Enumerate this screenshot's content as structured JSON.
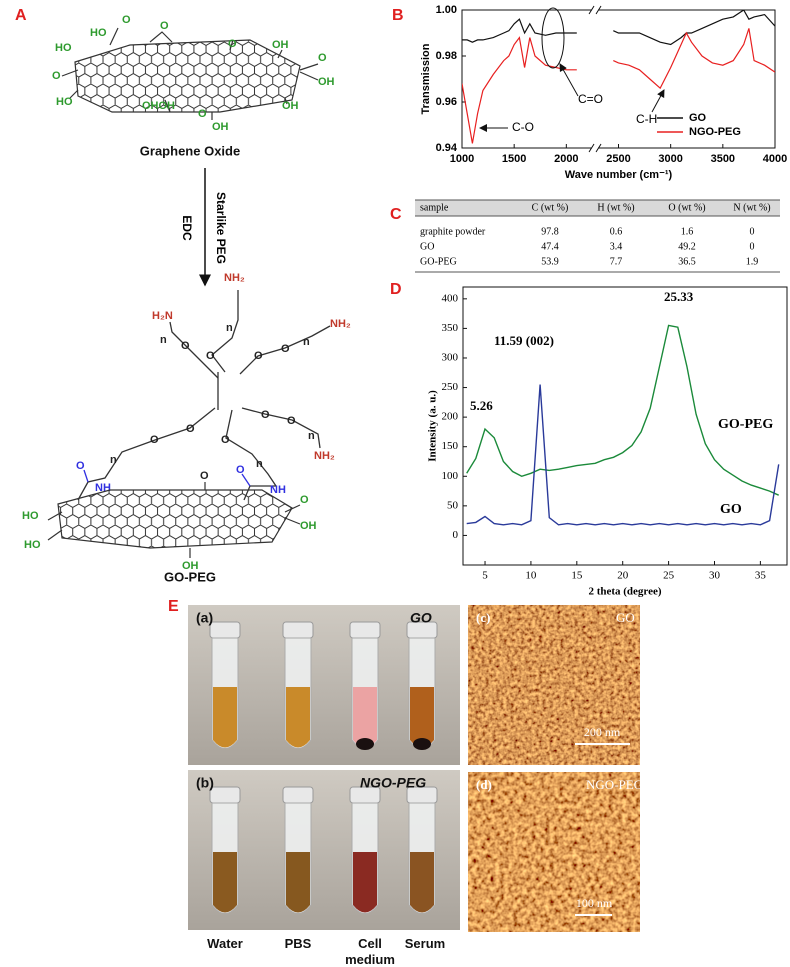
{
  "panel_labels": [
    "A",
    "B",
    "C",
    "D",
    "E"
  ],
  "panel_a": {
    "top_groups": [
      "HO",
      "O",
      "O",
      "O",
      "OH",
      "HO",
      "O",
      "OH",
      "O",
      "HO",
      "OHOH",
      "OH",
      "O",
      "OH"
    ],
    "top_caption": "Graphene Oxide",
    "reagents": [
      "Starlike PEG",
      "EDC"
    ],
    "bottom_groups": [
      "NH₂",
      "H₂N",
      "NH₂",
      "NH₂",
      "n",
      "n",
      "n",
      "n",
      "n",
      "n",
      "O",
      "O",
      "O",
      "O",
      "O",
      "O",
      "O",
      "O",
      "O",
      "NH",
      "NH",
      "O",
      "O",
      "O",
      "HO",
      "HO",
      "O",
      "OH",
      "OH"
    ],
    "bottom_caption": "GO-PEG"
  },
  "chart_data": [
    {
      "type": "line",
      "x_label": "Wave number (cm⁻¹)",
      "y_label": "Transmission",
      "x": [
        1000,
        1050,
        1100,
        1150,
        1200,
        1300,
        1400,
        1450,
        1500,
        1550,
        1600,
        1650,
        1700,
        1800,
        1900,
        2000,
        2100,
        2300,
        2450,
        2500,
        2600,
        2700,
        2800,
        2900,
        3000,
        3100,
        3150,
        3200,
        3300,
        3400,
        3500,
        3600,
        3700,
        3750,
        3800,
        3900,
        4000
      ],
      "series": [
        {
          "name": "GO",
          "color": "#111111",
          "values": [
            0.987,
            0.987,
            0.986,
            0.987,
            0.987,
            0.988,
            0.99,
            0.991,
            0.994,
            0.996,
            0.99,
            0.994,
            0.99,
            0.989,
            0.99,
            0.99,
            0.99,
            null,
            0.991,
            0.99,
            0.99,
            0.99,
            0.988,
            0.986,
            0.985,
            0.988,
            0.99,
            0.99,
            0.992,
            0.994,
            0.996,
            0.997,
            1.0,
            0.996,
            0.997,
            0.998,
            0.993
          ]
        },
        {
          "name": "NGO-PEG",
          "color": "#e82020",
          "values": [
            0.968,
            0.955,
            0.942,
            0.955,
            0.965,
            0.972,
            0.978,
            0.98,
            0.985,
            0.988,
            0.975,
            0.988,
            0.98,
            0.976,
            0.975,
            0.974,
            0.974,
            null,
            0.978,
            0.977,
            0.976,
            0.974,
            0.97,
            0.966,
            0.975,
            0.985,
            0.99,
            0.986,
            0.98,
            0.977,
            0.976,
            0.978,
            0.985,
            0.992,
            0.978,
            0.976,
            0.973
          ]
        }
      ],
      "xlim": [
        1000,
        4000
      ],
      "xticks": [
        1000,
        1500,
        2000,
        2500,
        3000,
        3500,
        4000
      ],
      "ylim": [
        0.94,
        1.0
      ],
      "yticks": [
        0.94,
        0.96,
        0.98,
        {
          "value": 1.0,
          "label": "1.00"
        }
      ],
      "annotations": [
        "C-O",
        "C=O",
        "C-H"
      ],
      "legend": "lower right"
    },
    {
      "type": "line",
      "x_label": "2 theta (degree)",
      "y_label": "Intensity (a. u.)",
      "x": [
        3,
        4,
        5,
        6,
        7,
        8,
        9,
        10,
        11,
        12,
        13,
        14,
        15,
        16,
        17,
        18,
        19,
        20,
        21,
        22,
        23,
        24,
        25,
        26,
        27,
        28,
        29,
        30,
        31,
        32,
        33,
        34,
        35,
        36,
        37
      ],
      "series": [
        {
          "name": "GO-PEG",
          "color": "#1b8a3a",
          "values": [
            105,
            130,
            180,
            165,
            125,
            108,
            100,
            105,
            112,
            110,
            112,
            115,
            118,
            120,
            122,
            128,
            132,
            140,
            152,
            175,
            215,
            285,
            355,
            352,
            285,
            205,
            155,
            128,
            112,
            102,
            92,
            85,
            80,
            75,
            68
          ]
        },
        {
          "name": "GO",
          "color": "#2a3a9a",
          "values": [
            20,
            22,
            32,
            20,
            18,
            20,
            18,
            25,
            255,
            30,
            18,
            20,
            18,
            20,
            18,
            20,
            18,
            20,
            18,
            20,
            18,
            20,
            18,
            20,
            18,
            20,
            18,
            20,
            18,
            20,
            18,
            20,
            18,
            25,
            120
          ]
        }
      ],
      "xlim": [
        2.6,
        37.9
      ],
      "xticks": [
        5,
        10,
        15,
        20,
        25,
        30,
        35
      ],
      "ylim": [
        -50,
        420
      ],
      "yticks": [
        0,
        50,
        100,
        150,
        200,
        250,
        300,
        350,
        400
      ],
      "annotations": [
        "5.26",
        "11.59 (002)",
        "25.33"
      ]
    }
  ],
  "table": {
    "header": [
      "sample",
      "C (wt %)",
      "H (wt %)",
      "O (wt %)",
      "N (wt %)"
    ],
    "rows": [
      [
        "graphite powder",
        97.8,
        0.6,
        1.6,
        0
      ],
      [
        "GO",
        47.4,
        3.4,
        49.2,
        0
      ],
      [
        "GO-PEG",
        53.9,
        7.7,
        36.5,
        1.9
      ]
    ]
  },
  "panel_e": {
    "photo_a_label": "(a)",
    "photo_a_title": "GO",
    "photo_b_label": "(b)",
    "photo_b_title": "NGO-PEG",
    "media": [
      "Water",
      "PBS",
      "Cell medium",
      "Serum"
    ],
    "afm_c_label": "(c)",
    "afm_c_title": "GO",
    "afm_c_scale": "200 nm",
    "afm_d_label": "(d)",
    "afm_d_title": "NGO-PEG",
    "afm_d_scale": "100 nm"
  }
}
